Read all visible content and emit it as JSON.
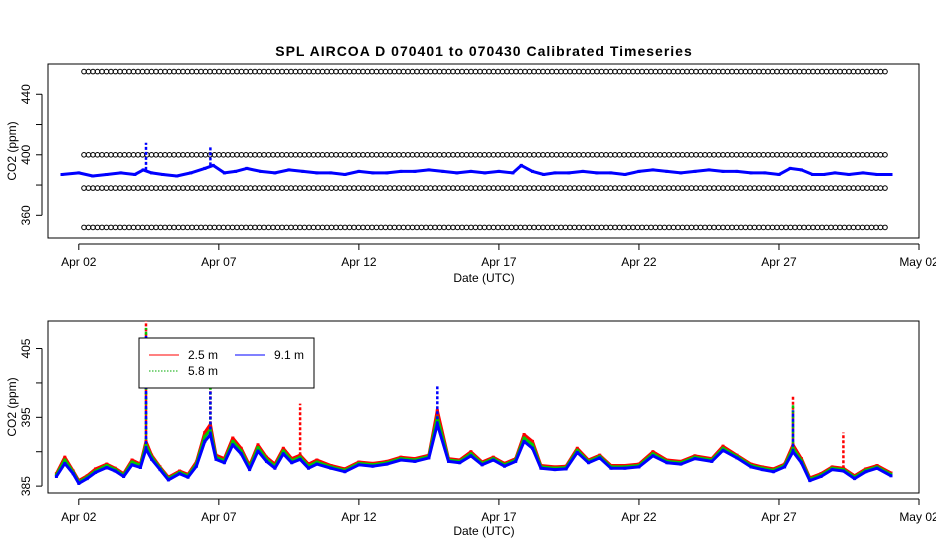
{
  "title": "SPL   AIRCOA  D    070401  to  070430   Calibrated Timeseries",
  "chart_data": [
    {
      "type": "line",
      "title": "SPL   AIRCOA  D    070401  to  070430   Calibrated Timeseries",
      "xlabel": "Date (UTC)",
      "ylabel": "CO2 (ppm)",
      "x_ticks": [
        "Apr 02",
        "Apr 07",
        "Apr 12",
        "Apr 17",
        "Apr 22",
        "Apr 27",
        "May 02"
      ],
      "x_tick_days": [
        2,
        7,
        12,
        17,
        22,
        27,
        32
      ],
      "xlim": [
        0.9,
        32.0
      ],
      "y_ticks": [
        360,
        400,
        440
      ],
      "ylim": [
        345,
        460
      ],
      "calibration_levels": [
        352,
        378,
        400,
        455
      ],
      "series": [
        {
          "color": "#0000ff",
          "x": [
            1.4,
            2.0,
            2.5,
            3.0,
            3.5,
            4.0,
            4.3,
            4.6,
            5.0,
            5.5,
            6.0,
            6.5,
            6.8,
            7.2,
            7.6,
            8.0,
            8.5,
            9.0,
            9.5,
            10.0,
            10.5,
            11.0,
            11.5,
            12.0,
            12.5,
            13.0,
            13.5,
            14.0,
            14.5,
            15.0,
            15.5,
            16.0,
            16.5,
            17.0,
            17.5,
            17.8,
            18.2,
            18.6,
            19.0,
            19.5,
            20.0,
            20.5,
            21.0,
            21.5,
            22.0,
            22.5,
            23.0,
            23.5,
            24.0,
            24.5,
            25.0,
            25.5,
            26.0,
            26.5,
            27.0,
            27.4,
            27.8,
            28.2,
            28.6,
            29.0,
            29.5,
            30.0,
            30.5,
            31.0
          ],
          "y": [
            387,
            388,
            386,
            387,
            388,
            387,
            390,
            388,
            387,
            386,
            388,
            391,
            393,
            388,
            389,
            391,
            389,
            388,
            390,
            389,
            388,
            388,
            387,
            389,
            388,
            388,
            389,
            389,
            390,
            389,
            388,
            389,
            388,
            389,
            388,
            393,
            389,
            387,
            388,
            388,
            389,
            388,
            388,
            387,
            389,
            390,
            389,
            388,
            389,
            390,
            389,
            389,
            388,
            388,
            387,
            391,
            390,
            387,
            387,
            388,
            387,
            388,
            387,
            387
          ],
          "spikes": [
            [
              4.4,
              408
            ],
            [
              6.7,
              405
            ]
          ]
        }
      ]
    },
    {
      "type": "line",
      "xlabel": "Date (UTC)",
      "ylabel": "CO2 (ppm)",
      "x_ticks": [
        "Apr 02",
        "Apr 07",
        "Apr 12",
        "Apr 17",
        "Apr 22",
        "Apr 27",
        "May 02"
      ],
      "x_tick_days": [
        2,
        7,
        12,
        17,
        22,
        27,
        32
      ],
      "xlim": [
        0.9,
        32.0
      ],
      "y_ticks": [
        385,
        395,
        405
      ],
      "ylim": [
        384,
        409
      ],
      "legend": {
        "placement": "top-left",
        "entries": [
          "2.5 m",
          "5.8 m",
          "9.1 m"
        ]
      },
      "series": [
        {
          "name": "2.5 m",
          "color": "#ff0000",
          "x": [
            1.2,
            1.5,
            1.8,
            2.0,
            2.3,
            2.6,
            3.0,
            3.3,
            3.6,
            3.9,
            4.2,
            4.4,
            4.6,
            4.9,
            5.2,
            5.6,
            5.9,
            6.2,
            6.5,
            6.7,
            6.9,
            7.2,
            7.5,
            7.8,
            8.1,
            8.4,
            8.7,
            9.0,
            9.3,
            9.6,
            9.9,
            10.2,
            10.5,
            11.0,
            11.5,
            12.0,
            12.5,
            13.0,
            13.5,
            14.0,
            14.5,
            14.8,
            15.2,
            15.6,
            16.0,
            16.4,
            16.8,
            17.2,
            17.6,
            17.9,
            18.2,
            18.5,
            19.0,
            19.4,
            19.8,
            20.2,
            20.6,
            21.0,
            21.5,
            22.0,
            22.5,
            23.0,
            23.5,
            24.0,
            24.6,
            25.0,
            25.5,
            26.0,
            26.4,
            26.8,
            27.2,
            27.5,
            27.8,
            28.1,
            28.5,
            28.9,
            29.3,
            29.7,
            30.1,
            30.5,
            31.0
          ],
          "y": [
            386.8,
            389.2,
            387.2,
            385.8,
            386.5,
            387.5,
            388.2,
            387.6,
            386.8,
            388.8,
            388.2,
            391.5,
            389.5,
            387.8,
            386.3,
            387.2,
            386.7,
            388.5,
            392.8,
            394.0,
            389.5,
            389.0,
            392.0,
            390.5,
            388.0,
            391.0,
            389.2,
            388.2,
            390.5,
            389.0,
            389.5,
            388.2,
            388.8,
            388.0,
            387.5,
            388.5,
            388.3,
            388.6,
            389.2,
            389.0,
            389.5,
            396.0,
            389.0,
            388.8,
            390.0,
            388.5,
            389.2,
            388.3,
            389.0,
            392.5,
            391.5,
            388.0,
            387.8,
            387.9,
            390.5,
            388.8,
            389.5,
            388.0,
            388.0,
            388.2,
            390.0,
            388.8,
            388.6,
            389.4,
            389.0,
            390.8,
            389.5,
            388.2,
            387.8,
            387.5,
            388.2,
            391.0,
            389.0,
            386.2,
            386.8,
            387.8,
            387.6,
            386.5,
            387.5,
            388.0,
            386.9
          ],
          "spikes": [
            [
              4.4,
              409.0
            ],
            [
              6.7,
              401.0
            ],
            [
              9.9,
              397.0
            ],
            [
              27.5,
              398.0
            ],
            [
              29.3,
              392.8
            ]
          ]
        },
        {
          "name": "5.8 m",
          "color": "#00cc00",
          "x": [
            1.2,
            1.5,
            1.8,
            2.0,
            2.3,
            2.6,
            3.0,
            3.3,
            3.6,
            3.9,
            4.2,
            4.4,
            4.6,
            4.9,
            5.2,
            5.6,
            5.9,
            6.2,
            6.5,
            6.7,
            6.9,
            7.2,
            7.5,
            7.8,
            8.1,
            8.4,
            8.7,
            9.0,
            9.3,
            9.6,
            9.9,
            10.2,
            10.5,
            11.0,
            11.5,
            12.0,
            12.5,
            13.0,
            13.5,
            14.0,
            14.5,
            14.8,
            15.2,
            15.6,
            16.0,
            16.4,
            16.8,
            17.2,
            17.6,
            17.9,
            18.2,
            18.5,
            19.0,
            19.4,
            19.8,
            20.2,
            20.6,
            21.0,
            21.5,
            22.0,
            22.5,
            23.0,
            23.5,
            24.0,
            24.6,
            25.0,
            25.5,
            26.0,
            26.4,
            26.8,
            27.2,
            27.5,
            27.8,
            28.1,
            28.5,
            28.9,
            29.3,
            29.7,
            30.1,
            30.5,
            31.0
          ],
          "y": [
            386.6,
            388.8,
            387.0,
            385.6,
            386.3,
            387.2,
            388.0,
            387.4,
            386.6,
            388.5,
            388.0,
            391.0,
            389.2,
            387.6,
            386.1,
            387.0,
            386.5,
            388.2,
            392.2,
            393.2,
            389.2,
            388.7,
            391.5,
            390.1,
            387.7,
            390.6,
            388.9,
            387.9,
            390.1,
            388.7,
            389.2,
            387.9,
            388.5,
            387.8,
            387.3,
            388.3,
            388.1,
            388.4,
            389.0,
            388.8,
            389.3,
            395.0,
            388.8,
            388.6,
            389.7,
            388.3,
            389.0,
            388.1,
            388.8,
            392.0,
            391.0,
            387.8,
            387.6,
            387.7,
            390.2,
            388.6,
            389.3,
            387.8,
            387.8,
            388.0,
            389.7,
            388.6,
            388.4,
            389.2,
            388.8,
            390.5,
            389.3,
            388.0,
            387.6,
            387.3,
            388.0,
            390.5,
            388.7,
            386.0,
            386.6,
            387.6,
            387.4,
            386.3,
            387.3,
            387.8,
            386.7
          ],
          "spikes": [
            [
              4.4,
              408.0
            ],
            [
              6.7,
              400.0
            ],
            [
              27.5,
              397.0
            ]
          ]
        },
        {
          "name": "9.1 m",
          "color": "#0000ff",
          "x": [
            1.2,
            1.5,
            1.8,
            2.0,
            2.3,
            2.6,
            3.0,
            3.3,
            3.6,
            3.9,
            4.2,
            4.4,
            4.6,
            4.9,
            5.2,
            5.6,
            5.9,
            6.2,
            6.5,
            6.7,
            6.9,
            7.2,
            7.5,
            7.8,
            8.1,
            8.4,
            8.7,
            9.0,
            9.3,
            9.6,
            9.9,
            10.2,
            10.5,
            11.0,
            11.5,
            12.0,
            12.5,
            13.0,
            13.5,
            14.0,
            14.5,
            14.8,
            15.2,
            15.6,
            16.0,
            16.4,
            16.8,
            17.2,
            17.6,
            17.9,
            18.2,
            18.5,
            19.0,
            19.4,
            19.8,
            20.2,
            20.6,
            21.0,
            21.5,
            22.0,
            22.5,
            23.0,
            23.5,
            24.0,
            24.6,
            25.0,
            25.5,
            26.0,
            26.4,
            26.8,
            27.2,
            27.5,
            27.8,
            28.1,
            28.5,
            28.9,
            29.3,
            29.7,
            30.1,
            30.5,
            31.0
          ],
          "y": [
            386.4,
            388.3,
            386.8,
            385.4,
            386.1,
            387.0,
            387.7,
            387.2,
            386.4,
            388.1,
            387.7,
            390.4,
            388.9,
            387.4,
            385.9,
            386.8,
            386.3,
            387.9,
            391.5,
            392.5,
            388.9,
            388.4,
            391.0,
            389.7,
            387.4,
            390.1,
            388.6,
            387.6,
            389.7,
            388.4,
            388.9,
            387.6,
            388.2,
            387.6,
            387.1,
            388.1,
            387.9,
            388.2,
            388.8,
            388.6,
            389.1,
            394.0,
            388.6,
            388.4,
            389.4,
            388.1,
            388.8,
            387.9,
            388.6,
            391.5,
            390.5,
            387.6,
            387.4,
            387.5,
            389.9,
            388.4,
            389.1,
            387.6,
            387.6,
            387.8,
            389.4,
            388.4,
            388.2,
            389.0,
            388.6,
            390.2,
            389.1,
            387.8,
            387.4,
            387.1,
            387.8,
            390.0,
            388.4,
            385.8,
            386.4,
            387.4,
            387.2,
            386.1,
            387.1,
            387.6,
            386.5
          ],
          "spikes": [
            [
              4.4,
              407.0
            ],
            [
              6.7,
              399.0
            ],
            [
              14.8,
              399.5
            ],
            [
              27.5,
              396.0
            ]
          ]
        }
      ]
    }
  ]
}
